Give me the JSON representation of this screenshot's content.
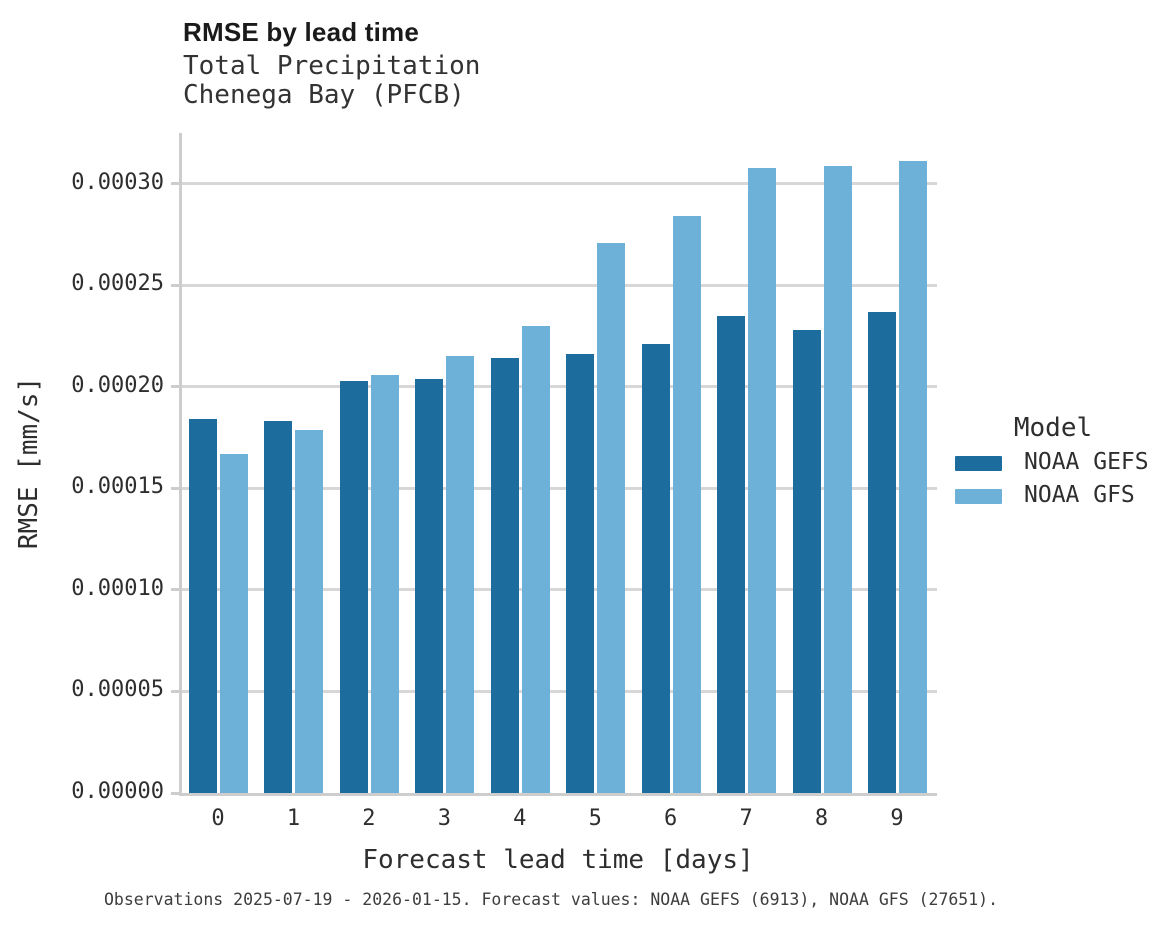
{
  "header": {
    "title": "RMSE by lead time",
    "subtitle1": "Total Precipitation",
    "subtitle2": "Chenega Bay (PFCB)"
  },
  "footer": "Observations 2025-07-19 - 2026-01-15. Forecast values: NOAA GEFS (6913), NOAA GFS (27651).",
  "colors": {
    "noaa_gefs": "#1c6d9d",
    "noaa_gfs": "#6db1d9",
    "gridline": "#d7d7d7",
    "spine": "#cdcdcd",
    "title_text": "#1a1a1a",
    "tick_text": "#2e2e2e"
  },
  "chart_data": {
    "type": "bar",
    "title": "RMSE by lead time",
    "subtitle": [
      "Total Precipitation",
      "Chenega Bay (PFCB)"
    ],
    "xlabel": "Forecast lead time [days]",
    "ylabel": "RMSE [mm/s]",
    "legend_title": "Model",
    "legend_position": "right",
    "grid": true,
    "categories": [
      0,
      1,
      2,
      3,
      4,
      5,
      6,
      7,
      8,
      9
    ],
    "series": [
      {
        "name": "NOAA GEFS",
        "color": "#1c6d9d",
        "values": [
          0.000184,
          0.000183,
          0.000203,
          0.000204,
          0.000214,
          0.000216,
          0.000221,
          0.000235,
          0.000228,
          0.000237
        ]
      },
      {
        "name": "NOAA GFS",
        "color": "#6db1d9",
        "values": [
          0.000167,
          0.000179,
          0.000206,
          0.000215,
          0.00023,
          0.000271,
          0.000284,
          0.000308,
          0.000309,
          0.000311
        ]
      }
    ],
    "ylim": [
      0,
      0.000325
    ],
    "yticks": [
      0,
      5e-05,
      0.0001,
      0.00015,
      0.0002,
      0.00025,
      0.0003
    ],
    "ytick_labels": [
      "0.00000",
      "0.00005",
      "0.00010",
      "0.00015",
      "0.00020",
      "0.00025",
      "0.00030"
    ]
  }
}
